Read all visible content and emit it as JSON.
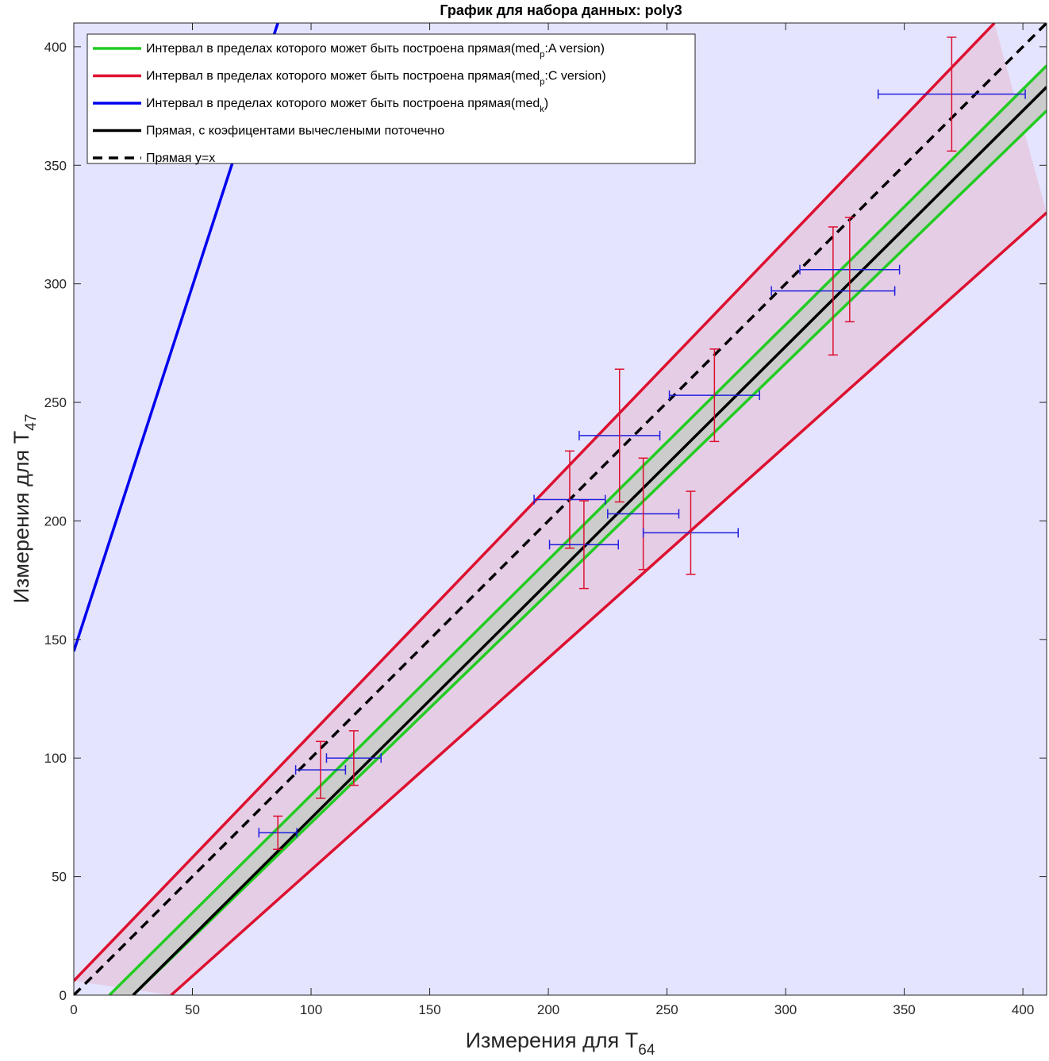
{
  "chart_data": {
    "type": "line",
    "title": "График для набора данных: poly3",
    "xlabel": {
      "main": "Измерения для T",
      "sub": "64"
    },
    "ylabel": {
      "main": "Измерения для T",
      "sub": "47"
    },
    "xlim": [
      0,
      410
    ],
    "ylim": [
      0,
      410
    ],
    "xticks": [
      0,
      50,
      100,
      150,
      200,
      250,
      300,
      350,
      400
    ],
    "yticks": [
      0,
      50,
      100,
      150,
      200,
      250,
      300,
      350,
      400
    ],
    "grid": false,
    "legend_position": "top-left",
    "colors": {
      "background": "#e4e4ff",
      "red_band_fill": "#e6cde6",
      "green_band_fill": "#cccccc",
      "green": "#22cc22",
      "red": "#dd1030",
      "blue": "#0000ee",
      "black": "#000000",
      "errbar_vertical": "#dd1030",
      "errbar_horizontal": "#2020dd"
    },
    "legend": [
      {
        "id": "green",
        "text_before": "Интервал в пределах которого может быть построена прямая(med",
        "sub": "p",
        "text_after": ":A version)",
        "style": "solid",
        "color": "#22cc22"
      },
      {
        "id": "red",
        "text_before": "Интервал в пределах которого может быть построена прямая(med",
        "sub": "p",
        "text_after": ":C version)",
        "style": "solid",
        "color": "#dd1030"
      },
      {
        "id": "blue",
        "text_before": "Интервал в пределах которого может быть построена прямая(med",
        "sub": "k",
        "text_after": ")",
        "style": "solid",
        "color": "#0000ee"
      },
      {
        "id": "black",
        "text_before": "Прямая, с коэфицентами вычеслеными поточечно",
        "sub": "",
        "text_after": "",
        "style": "solid",
        "color": "#000000"
      },
      {
        "id": "identity",
        "text_before": "Прямая y=x",
        "sub": "",
        "text_after": "",
        "style": "dashed",
        "color": "#000000"
      }
    ],
    "lines": [
      {
        "name": "red-upper",
        "color": "#dd1030",
        "width": 3.5,
        "dash": "",
        "points": [
          [
            0,
            6
          ],
          [
            388,
            410
          ]
        ]
      },
      {
        "name": "red-lower",
        "color": "#dd1030",
        "width": 3.5,
        "dash": "",
        "points": [
          [
            41,
            0
          ],
          [
            410,
            330
          ]
        ]
      },
      {
        "name": "green-upper",
        "color": "#22cc22",
        "width": 3.5,
        "dash": "",
        "points": [
          [
            15,
            0
          ],
          [
            410,
            392
          ]
        ]
      },
      {
        "name": "green-lower",
        "color": "#22cc22",
        "width": 3.5,
        "dash": "",
        "points": [
          [
            25,
            0
          ],
          [
            410,
            373
          ]
        ]
      },
      {
        "name": "black-fit",
        "color": "#000000",
        "width": 3.5,
        "dash": "",
        "points": [
          [
            25,
            0
          ],
          [
            410,
            383
          ]
        ]
      },
      {
        "name": "identity",
        "color": "#000000",
        "width": 3.5,
        "dash": "12,8",
        "points": [
          [
            0,
            0
          ],
          [
            410,
            410
          ]
        ]
      },
      {
        "name": "blue-line",
        "color": "#0000ee",
        "width": 3.5,
        "dash": "",
        "points": [
          [
            0,
            145
          ],
          [
            86,
            410
          ]
        ]
      }
    ],
    "errorbars": [
      {
        "x": 86,
        "y": 68.5,
        "xerr": 8,
        "yerr": 7
      },
      {
        "x": 104,
        "y": 95,
        "xerr": 10.5,
        "yerr": 12
      },
      {
        "x": 118,
        "y": 100,
        "xerr": 11.5,
        "yerr": 11.5
      },
      {
        "x": 209,
        "y": 209,
        "xerr": 15,
        "yerr": 20.5
      },
      {
        "x": 215,
        "y": 190,
        "xerr": 14.5,
        "yerr": 18.5
      },
      {
        "x": 230,
        "y": 236,
        "xerr": 17,
        "yerr": 28
      },
      {
        "x": 240,
        "y": 203,
        "xerr": 15,
        "yerr": 23.5
      },
      {
        "x": 260,
        "y": 195,
        "xerr": 20,
        "yerr": 17.5
      },
      {
        "x": 270,
        "y": 253,
        "xerr": 19,
        "yerr": 19.5
      },
      {
        "x": 320,
        "y": 297,
        "xerr": 26,
        "yerr": 27
      },
      {
        "x": 327,
        "y": 306,
        "xerr": 21,
        "yerr": 22
      },
      {
        "x": 370,
        "y": 380,
        "xerr": 31,
        "yerr": 24
      }
    ]
  }
}
